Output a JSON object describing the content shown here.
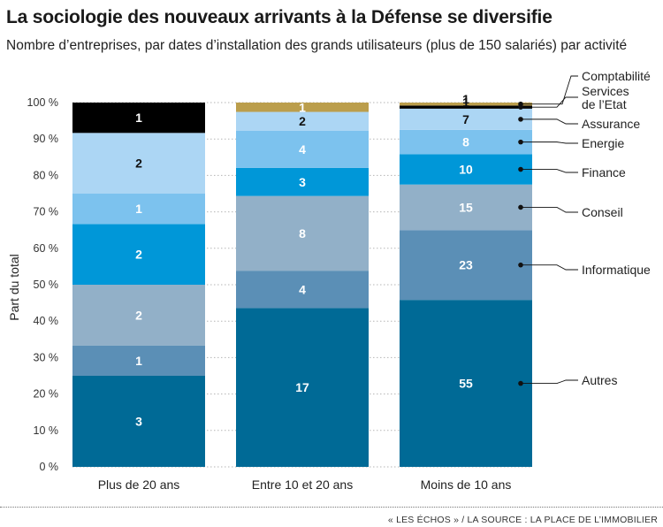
{
  "title": "La sociologie des nouveaux arrivants à la Défense se diversifie",
  "subtitle": "Nombre d’entreprises, par dates d’installation des grands utilisateurs (plus de 150 salariés) par activité",
  "source": "« LES ÉCHOS » / LA SOURCE : LA PLACE DE L’IMMOBILIER",
  "chart_data": {
    "type": "bar",
    "stacked": true,
    "normalized": true,
    "ylabel": "Part du total",
    "ylim": [
      0,
      100
    ],
    "yticks": [
      "0 %",
      "10 %",
      "20 %",
      "30 %",
      "40 %",
      "50 %",
      "60 %",
      "70 %",
      "80 %",
      "90 %",
      "100 %"
    ],
    "grid": true,
    "legend_position": "right",
    "categories": [
      "Plus de 20 ans",
      "Entre 10 et 20 ans",
      "Moins de 10 ans"
    ],
    "series": [
      {
        "name": "Autres",
        "color": "#006a96",
        "values": [
          3,
          17,
          55
        ]
      },
      {
        "name": "Informatique",
        "color": "#5b8fb6",
        "values": [
          1,
          4,
          23
        ]
      },
      {
        "name": "Conseil",
        "color": "#92b0c8",
        "values": [
          2,
          8,
          15
        ]
      },
      {
        "name": "Finance",
        "color": "#0097d8",
        "values": [
          2,
          3,
          10
        ]
      },
      {
        "name": "Energie",
        "color": "#7cc2ee",
        "values": [
          1,
          4,
          8
        ]
      },
      {
        "name": "Assurance",
        "color": "#acd6f4",
        "values": [
          2,
          2,
          7
        ]
      },
      {
        "name": "Services de l’Etat",
        "color": "#000000",
        "values": [
          1,
          null,
          1
        ]
      },
      {
        "name": "Comptabilité",
        "color": "#bb9e4c",
        "values": [
          null,
          1,
          1
        ]
      }
    ],
    "legend_labels": [
      {
        "series": "Comptabilité",
        "lines": [
          "Comptabilité"
        ]
      },
      {
        "series": "Services de l’Etat",
        "lines": [
          "Services",
          "de l’Etat"
        ]
      },
      {
        "series": "Assurance",
        "lines": [
          "Assurance"
        ]
      },
      {
        "series": "Energie",
        "lines": [
          "Energie"
        ]
      },
      {
        "series": "Finance",
        "lines": [
          "Finance"
        ]
      },
      {
        "series": "Conseil",
        "lines": [
          "Conseil"
        ]
      },
      {
        "series": "Informatique",
        "lines": [
          "Informatique"
        ]
      },
      {
        "series": "Autres",
        "lines": [
          "Autres"
        ]
      }
    ]
  }
}
